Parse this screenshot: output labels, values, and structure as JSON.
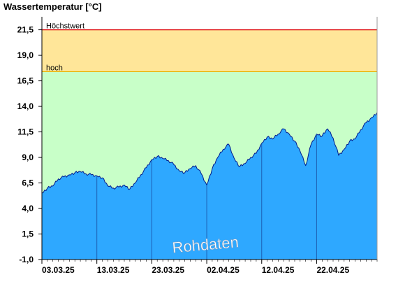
{
  "chart_data": {
    "type": "area",
    "ylabel": "Wassertemperatur [°C]",
    "ylim": [
      -1.0,
      22.5
    ],
    "yticks": [
      "-1,0",
      "1,5",
      "4,0",
      "6,5",
      "9,0",
      "11,5",
      "14,0",
      "16,5",
      "19,0",
      "21,5"
    ],
    "ytick_values": [
      -1.0,
      1.5,
      4.0,
      6.5,
      9.0,
      11.5,
      14.0,
      16.5,
      19.0,
      21.5
    ],
    "xlim": [
      "2025-03-03",
      "2025-05-03"
    ],
    "xticks": [
      "03.03.25",
      "13.03.25",
      "23.03.25",
      "02.04.25",
      "12.04.25",
      "22.04.25"
    ],
    "xtick_dates": [
      "2025-03-03",
      "2025-03-13",
      "2025-03-23",
      "2025-04-02",
      "2025-04-12",
      "2025-04-22"
    ],
    "thresholds": [
      {
        "label": "Höchstwert",
        "value": 21.5,
        "color": "#dd0000"
      },
      {
        "label": "hoch",
        "value": 17.4,
        "color": "#e8b000"
      }
    ],
    "bands": [
      {
        "from": 17.4,
        "to": 21.5,
        "color": "#ffe699"
      },
      {
        "from": -1.0,
        "to": 17.4,
        "color": "#c8ffc8"
      }
    ],
    "series": [
      {
        "color": "#2ea8ff",
        "x": [
          "2025-03-03",
          "2025-03-04",
          "2025-03-05",
          "2025-03-06",
          "2025-03-07",
          "2025-03-08",
          "2025-03-09",
          "2025-03-10",
          "2025-03-11",
          "2025-03-12",
          "2025-03-13",
          "2025-03-14",
          "2025-03-15",
          "2025-03-16",
          "2025-03-17",
          "2025-03-18",
          "2025-03-19",
          "2025-03-20",
          "2025-03-21",
          "2025-03-22",
          "2025-03-23",
          "2025-03-24",
          "2025-03-25",
          "2025-03-26",
          "2025-03-27",
          "2025-03-28",
          "2025-03-29",
          "2025-03-30",
          "2025-03-31",
          "2025-04-01",
          "2025-04-02",
          "2025-04-03",
          "2025-04-04",
          "2025-04-05",
          "2025-04-06",
          "2025-04-07",
          "2025-04-08",
          "2025-04-09",
          "2025-04-10",
          "2025-04-11",
          "2025-04-12",
          "2025-04-13",
          "2025-04-14",
          "2025-04-15",
          "2025-04-16",
          "2025-04-17",
          "2025-04-18",
          "2025-04-19",
          "2025-04-20",
          "2025-04-21",
          "2025-04-22",
          "2025-04-23",
          "2025-04-24",
          "2025-04-25",
          "2025-04-26",
          "2025-04-27",
          "2025-04-28",
          "2025-04-29",
          "2025-04-30",
          "2025-05-01",
          "2025-05-02",
          "2025-05-03"
        ],
        "values": [
          5.5,
          6.0,
          6.2,
          6.9,
          7.1,
          7.3,
          7.5,
          7.6,
          7.4,
          7.3,
          7.2,
          7.0,
          6.2,
          6.0,
          6.1,
          6.3,
          5.9,
          6.5,
          7.3,
          8.0,
          8.8,
          9.1,
          8.9,
          8.7,
          8.3,
          7.7,
          7.5,
          7.9,
          8.2,
          7.4,
          6.3,
          7.9,
          9.0,
          9.8,
          10.3,
          8.9,
          8.1,
          8.4,
          9.0,
          9.4,
          10.4,
          11.0,
          10.8,
          11.3,
          11.8,
          11.3,
          10.6,
          9.6,
          8.2,
          10.3,
          11.3,
          11.1,
          11.8,
          10.9,
          9.2,
          9.8,
          10.6,
          10.8,
          11.7,
          12.4,
          12.9,
          13.4
        ]
      }
    ],
    "annotations": [
      "Rohdaten"
    ],
    "grid": false
  }
}
